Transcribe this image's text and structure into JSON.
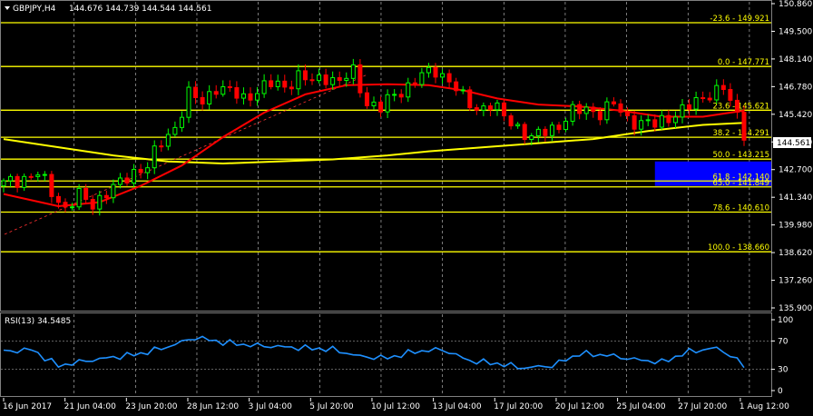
{
  "header": {
    "symbol": "GBPJPY,H4",
    "ohlc": "144.676 144.739 144.544 144.561"
  },
  "price_badge": "144.561",
  "rsi": {
    "label": "RSI(13) 34.5485",
    "levels": [
      100,
      70,
      30,
      0
    ]
  },
  "colors": {
    "background": "#000000",
    "bull": "#00ff00",
    "bear": "#ff0000",
    "ma_fast": "#ff0000",
    "ma_slow": "#ffff00",
    "fib": "#ffff00",
    "rsi": "#1e90ff",
    "zone": "#0000ff",
    "grid": "#ffffff"
  },
  "chart_data": {
    "type": "candlestick",
    "y_ticks": [
      "150.860",
      "149.500",
      "148.140",
      "146.780",
      "145.420",
      "144.060",
      "142.700",
      "141.340",
      "139.980",
      "138.620",
      "137.260",
      "135.900"
    ],
    "ylim": [
      135.9,
      150.86
    ],
    "x_ticks": [
      "16 Jun 2017",
      "21 Jun 04:00",
      "23 Jun 20:00",
      "28 Jun 12:00",
      "3 Jul 04:00",
      "5 Jul 20:00",
      "10 Jul 12:00",
      "13 Jul 04:00",
      "17 Jul 20:00",
      "20 Jul 12:00",
      "25 Jul 04:00",
      "27 Jul 20:00",
      "1 Aug 12:00"
    ],
    "fib_levels": [
      {
        "label": "-23.6 - 149.921",
        "price": 149.921
      },
      {
        "label": "0.0 - 147.771",
        "price": 147.771
      },
      {
        "label": "23.6 - 145.621",
        "price": 145.621
      },
      {
        "label": "38.2 - 144.291",
        "price": 144.291
      },
      {
        "label": "50.0 - 143.215",
        "price": 143.215
      },
      {
        "label": "61.8 - 142.140",
        "price": 142.14
      },
      {
        "label": "65.0 - 141.849",
        "price": 141.849
      },
      {
        "label": "78.6 - 140.610",
        "price": 140.61
      },
      {
        "label": "100.0 - 138.660",
        "price": 138.66
      }
    ],
    "zone": {
      "from_index": 95,
      "top": 143.1,
      "bottom": 141.9
    },
    "close_path": [
      {
        "i": 0,
        "p": 142.0
      },
      {
        "i": 3,
        "p": 142.3
      },
      {
        "i": 5,
        "p": 142.5
      },
      {
        "i": 7,
        "p": 141.6
      },
      {
        "i": 9,
        "p": 140.8
      },
      {
        "i": 11,
        "p": 141.4
      },
      {
        "i": 13,
        "p": 141.0
      },
      {
        "i": 15,
        "p": 141.6
      },
      {
        "i": 17,
        "p": 142.0
      },
      {
        "i": 19,
        "p": 142.6
      },
      {
        "i": 21,
        "p": 142.9
      },
      {
        "i": 23,
        "p": 144.0
      },
      {
        "i": 25,
        "p": 144.8
      },
      {
        "i": 27,
        "p": 146.4
      },
      {
        "i": 29,
        "p": 146.0
      },
      {
        "i": 31,
        "p": 146.8
      },
      {
        "i": 33,
        "p": 146.5
      },
      {
        "i": 35,
        "p": 146.2
      },
      {
        "i": 37,
        "p": 146.6
      },
      {
        "i": 39,
        "p": 146.9
      },
      {
        "i": 41,
        "p": 146.8
      },
      {
        "i": 43,
        "p": 147.3
      },
      {
        "i": 45,
        "p": 147.0
      },
      {
        "i": 47,
        "p": 147.3
      },
      {
        "i": 49,
        "p": 147.0
      },
      {
        "i": 51,
        "p": 147.5
      },
      {
        "i": 53,
        "p": 146.0
      },
      {
        "i": 55,
        "p": 145.7
      },
      {
        "i": 57,
        "p": 146.4
      },
      {
        "i": 59,
        "p": 146.8
      },
      {
        "i": 61,
        "p": 147.3
      },
      {
        "i": 63,
        "p": 147.6
      },
      {
        "i": 65,
        "p": 147.1
      },
      {
        "i": 67,
        "p": 146.2
      },
      {
        "i": 69,
        "p": 145.7
      },
      {
        "i": 71,
        "p": 145.9
      },
      {
        "i": 73,
        "p": 145.3
      },
      {
        "i": 75,
        "p": 144.8
      },
      {
        "i": 77,
        "p": 144.2
      },
      {
        "i": 79,
        "p": 144.6
      },
      {
        "i": 81,
        "p": 144.9
      },
      {
        "i": 83,
        "p": 145.5
      },
      {
        "i": 85,
        "p": 145.7
      },
      {
        "i": 87,
        "p": 145.5
      },
      {
        "i": 89,
        "p": 145.9
      },
      {
        "i": 91,
        "p": 145.2
      },
      {
        "i": 93,
        "p": 145.0
      },
      {
        "i": 95,
        "p": 144.9
      },
      {
        "i": 97,
        "p": 145.3
      },
      {
        "i": 99,
        "p": 145.6
      },
      {
        "i": 101,
        "p": 146.0
      },
      {
        "i": 103,
        "p": 146.5
      },
      {
        "i": 105,
        "p": 146.7
      },
      {
        "i": 107,
        "p": 145.3
      },
      {
        "i": 108,
        "p": 144.56
      }
    ],
    "ma_fast": [
      {
        "i": 0,
        "p": 141.5
      },
      {
        "i": 8,
        "p": 140.9
      },
      {
        "i": 14,
        "p": 141.1
      },
      {
        "i": 20,
        "p": 141.9
      },
      {
        "i": 26,
        "p": 142.9
      },
      {
        "i": 32,
        "p": 144.3
      },
      {
        "i": 38,
        "p": 145.5
      },
      {
        "i": 44,
        "p": 146.4
      },
      {
        "i": 50,
        "p": 146.85
      },
      {
        "i": 56,
        "p": 146.9
      },
      {
        "i": 62,
        "p": 146.85
      },
      {
        "i": 67,
        "p": 146.6
      },
      {
        "i": 72,
        "p": 146.2
      },
      {
        "i": 78,
        "p": 145.9
      },
      {
        "i": 84,
        "p": 145.8
      },
      {
        "i": 90,
        "p": 145.6
      },
      {
        "i": 96,
        "p": 145.3
      },
      {
        "i": 102,
        "p": 145.3
      },
      {
        "i": 108,
        "p": 145.6
      }
    ],
    "ma_slow": [
      {
        "i": 0,
        "p": 144.2
      },
      {
        "i": 8,
        "p": 143.8
      },
      {
        "i": 16,
        "p": 143.4
      },
      {
        "i": 24,
        "p": 143.1
      },
      {
        "i": 32,
        "p": 143.0
      },
      {
        "i": 40,
        "p": 143.1
      },
      {
        "i": 48,
        "p": 143.2
      },
      {
        "i": 56,
        "p": 143.4
      },
      {
        "i": 62,
        "p": 143.6
      },
      {
        "i": 70,
        "p": 143.8
      },
      {
        "i": 78,
        "p": 144.0
      },
      {
        "i": 86,
        "p": 144.2
      },
      {
        "i": 94,
        "p": 144.6
      },
      {
        "i": 102,
        "p": 144.9
      },
      {
        "i": 108,
        "p": 145.0
      }
    ],
    "rsi_path": [
      {
        "i": 0,
        "p": 55
      },
      {
        "i": 4,
        "p": 58
      },
      {
        "i": 8,
        "p": 35
      },
      {
        "i": 12,
        "p": 42
      },
      {
        "i": 16,
        "p": 47
      },
      {
        "i": 20,
        "p": 52
      },
      {
        "i": 24,
        "p": 62
      },
      {
        "i": 28,
        "p": 75
      },
      {
        "i": 32,
        "p": 68
      },
      {
        "i": 36,
        "p": 64
      },
      {
        "i": 40,
        "p": 62
      },
      {
        "i": 44,
        "p": 60
      },
      {
        "i": 48,
        "p": 58
      },
      {
        "i": 52,
        "p": 48
      },
      {
        "i": 56,
        "p": 46
      },
      {
        "i": 60,
        "p": 55
      },
      {
        "i": 64,
        "p": 58
      },
      {
        "i": 68,
        "p": 42
      },
      {
        "i": 72,
        "p": 38
      },
      {
        "i": 76,
        "p": 32
      },
      {
        "i": 80,
        "p": 35
      },
      {
        "i": 84,
        "p": 52
      },
      {
        "i": 88,
        "p": 50
      },
      {
        "i": 92,
        "p": 44
      },
      {
        "i": 96,
        "p": 40
      },
      {
        "i": 100,
        "p": 55
      },
      {
        "i": 104,
        "p": 60
      },
      {
        "i": 106,
        "p": 50
      },
      {
        "i": 108,
        "p": 34.5
      }
    ]
  }
}
